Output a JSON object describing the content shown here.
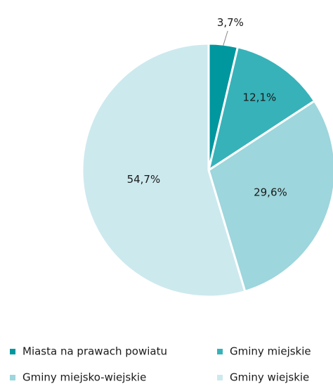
{
  "chart_data": {
    "type": "pie",
    "categories": [
      "Miasta na prawach powiatu",
      "Gminy miejskie",
      "Gminy miejsko-wiejskie",
      "Gminy wiejskie"
    ],
    "values": [
      3.7,
      12.1,
      29.6,
      54.7
    ],
    "value_labels": [
      "3,7%",
      "12,1%",
      "29,6%",
      "54,7%"
    ],
    "colors": [
      "#00979f",
      "#37b2b9",
      "#9dd6dc",
      "#cce9ee"
    ],
    "legend": "bottom"
  }
}
